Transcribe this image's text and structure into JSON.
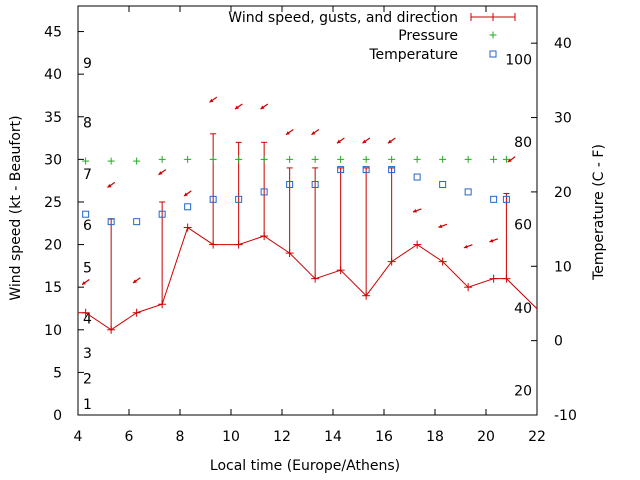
{
  "chart_data": {
    "type": "line",
    "xlabel": "Local time (Europe/Athens)",
    "ylabel": "Wind speed (kt - Beaufort)",
    "y2label": "Temperature (C - F)",
    "xlim": [
      4,
      22
    ],
    "ylim": [
      0,
      48
    ],
    "y2lim": [
      -10,
      45
    ],
    "x_ticks": [
      "4",
      "6",
      "8",
      "10",
      "12",
      "14",
      "16",
      "18",
      "20",
      "22"
    ],
    "y_ticks": [
      "0",
      "5",
      "10",
      "15",
      "20",
      "25",
      "30",
      "35",
      "40",
      "45"
    ],
    "y2_ticks": [
      "-10",
      "0",
      "10",
      "20",
      "30",
      "40"
    ],
    "beaufort_labels": [
      {
        "text": "1",
        "y": 1.3
      },
      {
        "text": "2",
        "y": 4.3
      },
      {
        "text": "3",
        "y": 7.3
      },
      {
        "text": "4",
        "y": 11.3
      },
      {
        "text": "5",
        "y": 17.3
      },
      {
        "text": "6",
        "y": 22.3
      },
      {
        "text": "7",
        "y": 28.3
      },
      {
        "text": "8",
        "y": 34.3
      },
      {
        "text": "9",
        "y": 41.3
      }
    ],
    "fahrenheit_labels": [
      {
        "text": "20",
        "y": -6.7
      },
      {
        "text": "40",
        "y": 4.4
      },
      {
        "text": "60",
        "y": 15.6
      },
      {
        "text": "80",
        "y": 26.7
      },
      {
        "text": "100",
        "y": 37.8
      }
    ],
    "legend": {
      "placement": "top-right",
      "entries": [
        "Wind speed, gusts, and direction",
        "Pressure",
        "Temperature"
      ]
    },
    "colors": {
      "wind": "#cc0000",
      "pressure": "#22aa22",
      "temperature": "#2266cc"
    },
    "wind": {
      "x": [
        3.0,
        4.3,
        5.3,
        6.3,
        7.3,
        8.3,
        9.3,
        10.3,
        11.3,
        12.3,
        13.3,
        14.3,
        15.3,
        16.3,
        17.3,
        18.3,
        19.3,
        20.3,
        20.8,
        22.5
      ],
      "speed": [
        12,
        12,
        10,
        12,
        13,
        22,
        20,
        20,
        21,
        19,
        16,
        17,
        14,
        18,
        20,
        18,
        15,
        16,
        16,
        11
      ],
      "gust": [
        null,
        null,
        23,
        null,
        25,
        null,
        33,
        32,
        32,
        29,
        29,
        29,
        29,
        29,
        null,
        null,
        null,
        null,
        26,
        null
      ],
      "direction_deg": [
        300,
        300,
        300,
        300,
        300,
        300,
        300,
        300,
        300,
        300,
        300,
        300,
        300,
        300,
        120,
        120,
        120,
        120,
        120,
        120
      ]
    },
    "arrows": [
      {
        "x": 4.3,
        "y": 15.6,
        "angle": 145
      },
      {
        "x": 5.3,
        "y": 27.0,
        "angle": 145
      },
      {
        "x": 6.3,
        "y": 15.8,
        "angle": 145
      },
      {
        "x": 7.3,
        "y": 28.5,
        "angle": 145
      },
      {
        "x": 8.3,
        "y": 26.0,
        "angle": 145
      },
      {
        "x": 9.3,
        "y": 37.0,
        "angle": 145
      },
      {
        "x": 10.3,
        "y": 36.2,
        "angle": 145
      },
      {
        "x": 11.3,
        "y": 36.2,
        "angle": 145
      },
      {
        "x": 12.3,
        "y": 33.2,
        "angle": 145
      },
      {
        "x": 13.3,
        "y": 33.2,
        "angle": 145
      },
      {
        "x": 14.3,
        "y": 32.2,
        "angle": 145
      },
      {
        "x": 15.3,
        "y": 32.2,
        "angle": 145
      },
      {
        "x": 16.3,
        "y": 32.2,
        "angle": 145
      },
      {
        "x": 17.3,
        "y": 24.0,
        "angle": 160
      },
      {
        "x": 18.3,
        "y": 22.2,
        "angle": 160
      },
      {
        "x": 19.3,
        "y": 19.8,
        "angle": 160
      },
      {
        "x": 20.3,
        "y": 20.5,
        "angle": 160
      },
      {
        "x": 21.0,
        "y": 30.0,
        "angle": 145
      }
    ],
    "pressure": {
      "x": [
        4.3,
        5.3,
        6.3,
        7.3,
        8.3,
        9.3,
        10.3,
        11.3,
        12.3,
        13.3,
        14.3,
        15.3,
        16.3,
        17.3,
        18.3,
        19.3,
        20.3,
        20.8
      ],
      "y": [
        29.8,
        29.8,
        29.8,
        30.0,
        30.0,
        30.0,
        30.0,
        30.0,
        30.0,
        30.0,
        30.0,
        30.0,
        30.0,
        30.0,
        30.0,
        30.0,
        30.0,
        30.0
      ]
    },
    "temperature": {
      "x": [
        4.3,
        5.3,
        6.3,
        7.3,
        8.3,
        9.3,
        10.3,
        11.3,
        12.3,
        13.3,
        14.3,
        15.3,
        16.3,
        17.3,
        18.3,
        19.3,
        20.3,
        20.8
      ],
      "y": [
        17,
        16,
        16,
        17,
        18,
        19,
        19,
        20,
        21,
        21,
        23,
        23,
        23,
        22,
        21,
        20,
        19,
        19
      ]
    }
  }
}
